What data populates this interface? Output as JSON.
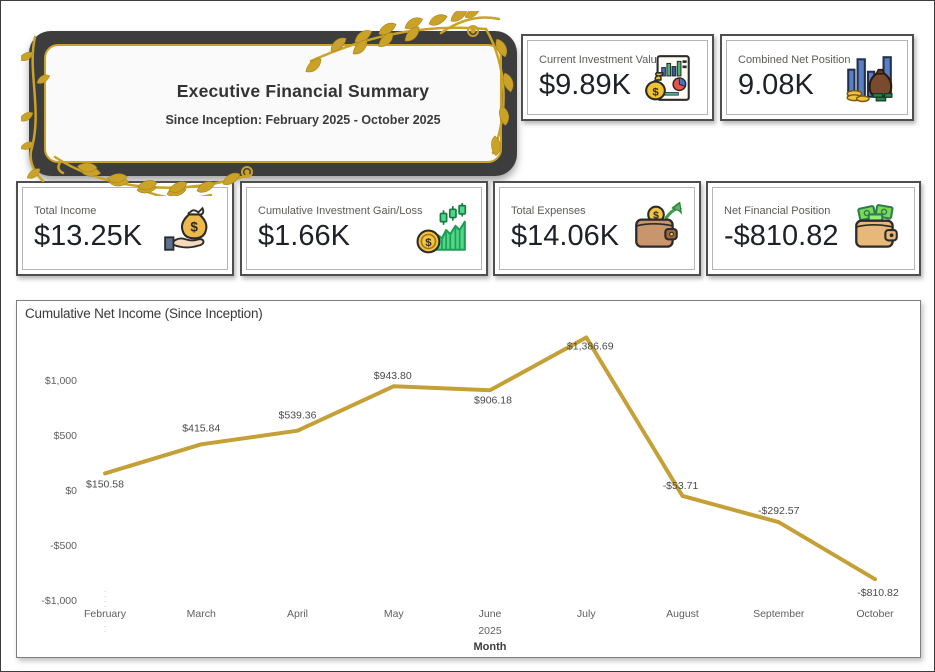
{
  "header": {
    "title": "Executive Financial Summary",
    "subtitle": "Since Inception: February 2025 - October 2025",
    "frame_color": "#3D3D3D",
    "accent_gold": "#C9A227"
  },
  "kpi_cards_top": [
    {
      "label": "Current Investment Value",
      "value": "$9.89K",
      "icon": "investment-report-icon"
    },
    {
      "label": "Combined Net Position",
      "value": "9.08K",
      "icon": "bars-money-sack-icon"
    }
  ],
  "kpi_cards_row": [
    {
      "label": "Total Income",
      "value": "$13.25K",
      "icon": "hand-money-bag-icon"
    },
    {
      "label": "Cumulative Investment Gain/Loss",
      "value": "$1.66K",
      "icon": "growth-chart-coin-icon"
    },
    {
      "label": "Total Expenses",
      "value": "$14.06K",
      "icon": "wallet-coin-arrow-icon"
    },
    {
      "label": "Net Financial Position",
      "value": "-$810.82",
      "icon": "wallet-cash-icon"
    }
  ],
  "chart_data": {
    "type": "line",
    "title": "Cumulative Net Income (Since Inception)",
    "xlabel": "Month",
    "categories": [
      "February",
      "March",
      "April",
      "May",
      "June",
      "July",
      "August",
      "September",
      "October"
    ],
    "values": [
      150.58,
      415.84,
      539.36,
      943.8,
      906.18,
      1386.69,
      -53.71,
      -292.57,
      -810.82
    ],
    "data_labels": [
      "$150.58",
      "$415.84",
      "$539.36",
      "$943.80",
      "$906.18",
      "$1,386.69",
      "-$53.71",
      "-$292.57",
      "-$810.82"
    ],
    "year_note": "2025",
    "year_note_under": "June",
    "y_ticks": [
      {
        "value": 1000,
        "label": "$1,000"
      },
      {
        "value": 500,
        "label": "$500"
      },
      {
        "value": 0,
        "label": "$0"
      },
      {
        "value": -500,
        "label": "-$500"
      },
      {
        "value": -1000,
        "label": "-$1,000"
      }
    ],
    "ylim": [
      -1150,
      1500
    ],
    "line_color": "#C4A037",
    "grid": false,
    "legend": "none",
    "label_color": "#4a4a4a",
    "axis_color": "#5f5f5f"
  }
}
